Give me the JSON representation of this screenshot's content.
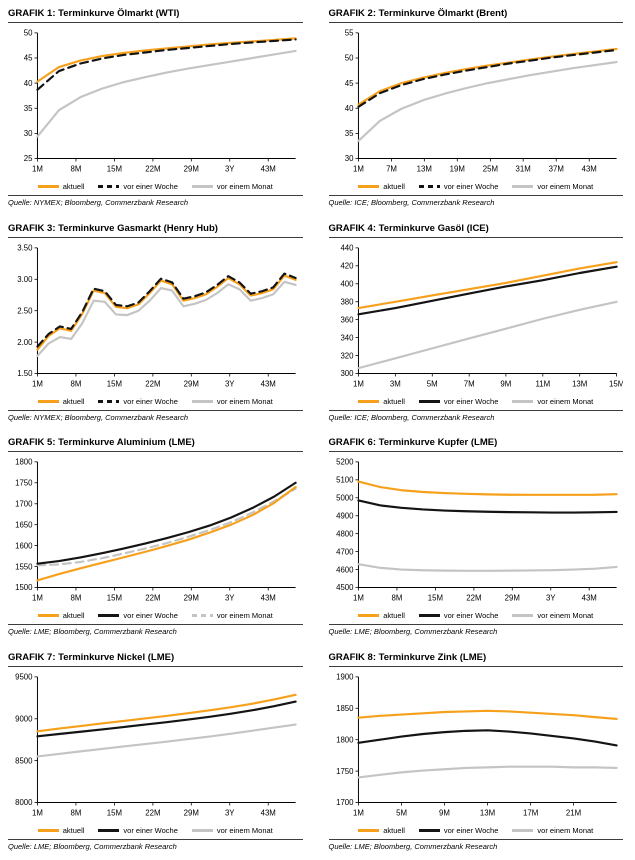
{
  "page": {
    "background": "#ffffff"
  },
  "colors": {
    "aktuell": "#F6A01B",
    "woche": "#141414",
    "monat": "#C4C4C4",
    "axis": "#000000"
  },
  "legend_labels": [
    "aktuell",
    "vor einer Woche",
    "vor einem Monat"
  ],
  "chart_data": [
    {
      "type": "line",
      "title": "GRAFIK 1: Terminkurve Ölmarkt (WTI)",
      "source": "Quelle: NYMEX; Bloomberg, Commerzbank Research",
      "xlabel": "",
      "ylabel": "",
      "ylim": [
        25,
        50
      ],
      "yticks": [
        25,
        30,
        35,
        40,
        45,
        50
      ],
      "ytick_labels": [
        "25",
        "30",
        "35",
        "40",
        "45",
        "50"
      ],
      "x_labels": [
        "1M",
        "8M",
        "15M",
        "22M",
        "29M",
        "3Y",
        "43M"
      ],
      "x_pos": [
        0,
        0.149,
        0.298,
        0.447,
        0.596,
        0.745,
        0.894
      ],
      "legend_position": "bottom",
      "draw_order": [
        2,
        0,
        1
      ],
      "series": [
        {
          "name": "aktuell",
          "color": "aktuell",
          "dash": false,
          "values": [
            40.3,
            43.2,
            44.5,
            45.4,
            46.0,
            46.5,
            46.9,
            47.3,
            47.7,
            48.0,
            48.3,
            48.6,
            48.9
          ]
        },
        {
          "name": "vor einer Woche",
          "color": "woche",
          "dash": true,
          "values": [
            38.7,
            42.4,
            43.9,
            44.9,
            45.6,
            46.1,
            46.6,
            47.0,
            47.4,
            47.8,
            48.1,
            48.4,
            48.7
          ]
        },
        {
          "name": "vor einem Monat",
          "color": "monat",
          "dash": false,
          "values": [
            29.4,
            34.6,
            37.2,
            38.9,
            40.2,
            41.2,
            42.1,
            42.9,
            43.6,
            44.3,
            45.0,
            45.7,
            46.4
          ]
        }
      ]
    },
    {
      "type": "line",
      "title": "GRAFIK 2: Terminkurve Ölmarkt (Brent)",
      "source": "Quelle: ICE; Bloomberg, Commerzbank Research",
      "xlabel": "",
      "ylabel": "",
      "ylim": [
        30,
        55
      ],
      "yticks": [
        30,
        35,
        40,
        45,
        50,
        55
      ],
      "ytick_labels": [
        "30",
        "35",
        "40",
        "45",
        "50",
        "55"
      ],
      "x_labels": [
        "1M",
        "7M",
        "13M",
        "19M",
        "25M",
        "31M",
        "37M",
        "43M"
      ],
      "x_pos": [
        0,
        0.128,
        0.255,
        0.383,
        0.511,
        0.638,
        0.766,
        0.894
      ],
      "legend_position": "bottom",
      "draw_order": [
        2,
        0,
        1
      ],
      "series": [
        {
          "name": "aktuell",
          "color": "aktuell",
          "dash": false,
          "values": [
            40.7,
            43.4,
            45.0,
            46.1,
            47.0,
            47.8,
            48.5,
            49.1,
            49.7,
            50.3,
            50.8,
            51.3,
            51.8
          ]
        },
        {
          "name": "vor einer Woche",
          "color": "woche",
          "dash": true,
          "values": [
            40.3,
            43.0,
            44.6,
            45.8,
            46.7,
            47.5,
            48.2,
            48.9,
            49.5,
            50.1,
            50.6,
            51.1,
            51.6
          ]
        },
        {
          "name": "vor einem Monat",
          "color": "monat",
          "dash": false,
          "values": [
            33.5,
            37.5,
            39.9,
            41.6,
            42.9,
            44.0,
            45.0,
            45.8,
            46.6,
            47.3,
            48.0,
            48.6,
            49.2
          ]
        }
      ]
    },
    {
      "type": "line",
      "title": "GRAFIK 3: Terminkurve Gasmarkt (Henry Hub)",
      "source": "Quelle: NYMEX; Bloomberg, Commerzbank Research",
      "xlabel": "",
      "ylabel": "",
      "ylim": [
        1.5,
        3.5
      ],
      "yticks": [
        1.5,
        2.0,
        2.5,
        3.0,
        3.5
      ],
      "ytick_labels": [
        "1.50",
        "2.00",
        "2.50",
        "3.00",
        "3.50"
      ],
      "x_labels": [
        "1M",
        "8M",
        "15M",
        "22M",
        "29M",
        "3Y",
        "43M"
      ],
      "x_pos": [
        0,
        0.149,
        0.298,
        0.447,
        0.596,
        0.745,
        0.894
      ],
      "legend_position": "bottom",
      "draw_order": [
        2,
        0,
        1
      ],
      "series": [
        {
          "name": "aktuell",
          "color": "aktuell",
          "dash": false,
          "values": [
            1.88,
            2.1,
            2.22,
            2.18,
            2.45,
            2.82,
            2.78,
            2.56,
            2.54,
            2.6,
            2.78,
            2.98,
            2.92,
            2.66,
            2.7,
            2.76,
            2.88,
            3.02,
            2.92,
            2.74,
            2.78,
            2.84,
            3.06,
            2.99
          ]
        },
        {
          "name": "vor einer Woche",
          "color": "woche",
          "dash": true,
          "values": [
            1.93,
            2.13,
            2.25,
            2.21,
            2.48,
            2.85,
            2.81,
            2.59,
            2.57,
            2.63,
            2.81,
            3.01,
            2.95,
            2.69,
            2.73,
            2.79,
            2.91,
            3.05,
            2.95,
            2.77,
            2.81,
            2.87,
            3.09,
            3.02
          ]
        },
        {
          "name": "vor einem Monat",
          "color": "monat",
          "dash": false,
          "values": [
            1.78,
            1.98,
            2.08,
            2.05,
            2.3,
            2.66,
            2.64,
            2.44,
            2.43,
            2.5,
            2.66,
            2.86,
            2.82,
            2.57,
            2.61,
            2.67,
            2.78,
            2.92,
            2.84,
            2.66,
            2.7,
            2.76,
            2.96,
            2.91
          ]
        }
      ]
    },
    {
      "type": "line",
      "title": "GRAFIK 4: Terminkurve Gasöl (ICE)",
      "source": "Quelle: ICE; Bloomberg, Commerzbank Research",
      "xlabel": "",
      "ylabel": "",
      "ylim": [
        300,
        440
      ],
      "yticks": [
        300,
        320,
        340,
        360,
        380,
        400,
        420,
        440
      ],
      "ytick_labels": [
        "300",
        "320",
        "340",
        "360",
        "380",
        "400",
        "420",
        "440"
      ],
      "x_labels": [
        "1M",
        "3M",
        "5M",
        "7M",
        "9M",
        "11M",
        "13M",
        "15M"
      ],
      "x_pos": [
        0,
        0.143,
        0.286,
        0.429,
        0.571,
        0.714,
        0.857,
        1.0
      ],
      "legend_position": "bottom",
      "draw_order": [
        2,
        1,
        0
      ],
      "series": [
        {
          "name": "aktuell",
          "color": "aktuell",
          "dash": false,
          "values": [
            373,
            380,
            387,
            394,
            401,
            409,
            417,
            424
          ]
        },
        {
          "name": "vor einer Woche",
          "color": "woche",
          "dash": false,
          "values": [
            366,
            373,
            381,
            389,
            397,
            404,
            412,
            419
          ]
        },
        {
          "name": "vor einem Monat",
          "color": "monat",
          "dash": false,
          "values": [
            306,
            317,
            328,
            339,
            350,
            361,
            371,
            380
          ]
        }
      ]
    },
    {
      "type": "line",
      "title": "GRAFIK 5: Terminkurve Aluminium (LME)",
      "source": "Quelle: LME; Bloomberg, Commerzbank Research",
      "xlabel": "",
      "ylabel": "",
      "ylim": [
        1500,
        1800
      ],
      "yticks": [
        1500,
        1550,
        1600,
        1650,
        1700,
        1750,
        1800
      ],
      "ytick_labels": [
        "1500",
        "1550",
        "1600",
        "1650",
        "1700",
        "1750",
        "1800"
      ],
      "x_labels": [
        "1M",
        "8M",
        "15M",
        "22M",
        "29M",
        "3Y",
        "43M"
      ],
      "x_pos": [
        0,
        0.149,
        0.298,
        0.447,
        0.596,
        0.745,
        0.894
      ],
      "legend_position": "bottom",
      "draw_order": [
        2,
        1,
        0
      ],
      "series": [
        {
          "name": "aktuell",
          "color": "aktuell",
          "dash": false,
          "values": [
            1517,
            1532,
            1546,
            1559,
            1572,
            1585,
            1599,
            1614,
            1631,
            1650,
            1673,
            1702,
            1740
          ]
        },
        {
          "name": "vor einer Woche",
          "color": "woche",
          "dash": false,
          "values": [
            1557,
            1563,
            1572,
            1582,
            1593,
            1605,
            1618,
            1632,
            1648,
            1667,
            1690,
            1717,
            1750
          ]
        },
        {
          "name": "vor einem Monat",
          "color": "monat",
          "dash": true,
          "values": [
            1553,
            1555,
            1561,
            1570,
            1581,
            1593,
            1606,
            1621,
            1637,
            1656,
            1679,
            1706,
            1736
          ]
        }
      ]
    },
    {
      "type": "line",
      "title": "GRAFIK 6: Terminkurve Kupfer (LME)",
      "source": "Quelle: LME; Bloomberg, Commerzbank Research",
      "xlabel": "",
      "ylabel": "",
      "ylim": [
        4500,
        5200
      ],
      "yticks": [
        4500,
        4600,
        4700,
        4800,
        4900,
        5000,
        5100,
        5200
      ],
      "ytick_labels": [
        "4500",
        "4600",
        "4700",
        "4800",
        "4900",
        "5000",
        "5100",
        "5200"
      ],
      "x_labels": [
        "1M",
        "8M",
        "15M",
        "22M",
        "29M",
        "3Y",
        "43M"
      ],
      "x_pos": [
        0,
        0.149,
        0.298,
        0.447,
        0.596,
        0.745,
        0.894
      ],
      "legend_position": "bottom",
      "draw_order": [
        2,
        1,
        0
      ],
      "series": [
        {
          "name": "aktuell",
          "color": "aktuell",
          "dash": false,
          "values": [
            5090,
            5060,
            5042,
            5032,
            5026,
            5022,
            5019,
            5017,
            5016,
            5016,
            5016,
            5017,
            5020
          ]
        },
        {
          "name": "vor einer Woche",
          "color": "woche",
          "dash": false,
          "values": [
            4985,
            4958,
            4944,
            4935,
            4929,
            4925,
            4922,
            4920,
            4919,
            4918,
            4918,
            4919,
            4921
          ]
        },
        {
          "name": "vor einem Monat",
          "color": "monat",
          "dash": false,
          "values": [
            4630,
            4610,
            4600,
            4596,
            4594,
            4593,
            4593,
            4594,
            4595,
            4597,
            4600,
            4605,
            4615
          ]
        }
      ]
    },
    {
      "type": "line",
      "title": "GRAFIK 7: Terminkurve Nickel (LME)",
      "source": "Quelle: LME; Bloomberg, Commerzbank Research",
      "xlabel": "",
      "ylabel": "",
      "ylim": [
        8000,
        9500
      ],
      "yticks": [
        8000,
        8500,
        9000,
        9500
      ],
      "ytick_labels": [
        "8000",
        "8500",
        "9000",
        "9500"
      ],
      "x_labels": [
        "1M",
        "8M",
        "15M",
        "22M",
        "29M",
        "3Y",
        "43M"
      ],
      "x_pos": [
        0,
        0.149,
        0.298,
        0.447,
        0.596,
        0.745,
        0.894
      ],
      "legend_position": "bottom",
      "draw_order": [
        2,
        1,
        0
      ],
      "series": [
        {
          "name": "aktuell",
          "color": "aktuell",
          "dash": false,
          "values": [
            8850,
            8882,
            8913,
            8944,
            8974,
            9004,
            9034,
            9066,
            9100,
            9138,
            9180,
            9230,
            9285
          ]
        },
        {
          "name": "vor einer Woche",
          "color": "woche",
          "dash": false,
          "values": [
            8790,
            8818,
            8845,
            8873,
            8901,
            8930,
            8959,
            8990,
            9023,
            9060,
            9102,
            9150,
            9205
          ]
        },
        {
          "name": "vor einem Monat",
          "color": "monat",
          "dash": false,
          "values": [
            8550,
            8580,
            8610,
            8640,
            8669,
            8698,
            8727,
            8757,
            8788,
            8822,
            8858,
            8895,
            8930
          ]
        }
      ]
    },
    {
      "type": "line",
      "title": "GRAFIK 8: Terminkurve Zink (LME)",
      "source": "Quelle: LME; Bloomberg, Commerzbank Research",
      "xlabel": "",
      "ylabel": "",
      "ylim": [
        1700,
        1900
      ],
      "yticks": [
        1700,
        1750,
        1800,
        1850,
        1900
      ],
      "ytick_labels": [
        "1700",
        "1750",
        "1800",
        "1850",
        "1900"
      ],
      "x_labels": [
        "1M",
        "5M",
        "9M",
        "13M",
        "17M",
        "21M"
      ],
      "x_pos": [
        0,
        0.167,
        0.333,
        0.5,
        0.667,
        0.833
      ],
      "legend_position": "bottom",
      "draw_order": [
        2,
        1,
        0
      ],
      "series": [
        {
          "name": "aktuell",
          "color": "aktuell",
          "dash": false,
          "values": [
            1835,
            1838,
            1840,
            1842,
            1844,
            1845,
            1846,
            1845,
            1843,
            1841,
            1839,
            1836,
            1833
          ]
        },
        {
          "name": "vor einer Woche",
          "color": "woche",
          "dash": false,
          "values": [
            1795,
            1800,
            1805,
            1809,
            1812,
            1814,
            1815,
            1813,
            1810,
            1806,
            1802,
            1797,
            1791
          ]
        },
        {
          "name": "vor einem Monat",
          "color": "monat",
          "dash": false,
          "values": [
            1740,
            1744,
            1748,
            1751,
            1753,
            1755,
            1756,
            1757,
            1757,
            1757,
            1756,
            1756,
            1755
          ]
        }
      ]
    }
  ]
}
